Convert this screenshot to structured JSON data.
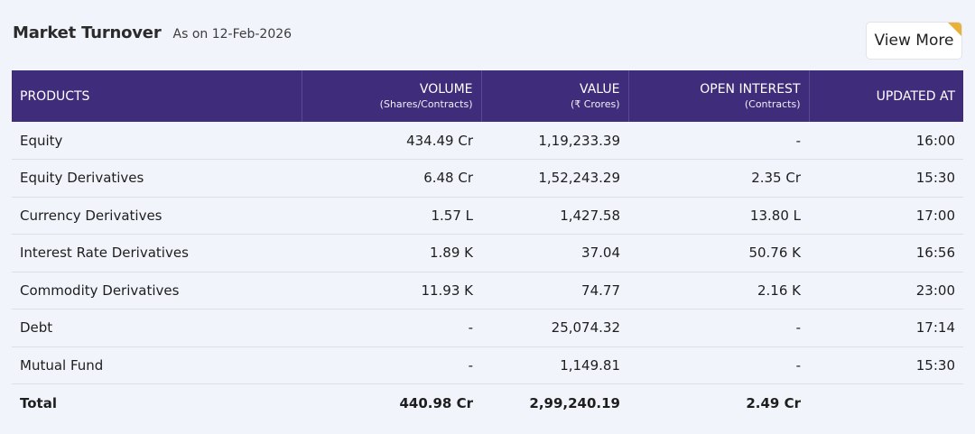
{
  "header": {
    "title": "Market Turnover",
    "as_of": "As on 12-Feb-2026",
    "view_more_label": "View More"
  },
  "table": {
    "columns": [
      {
        "main": "PRODUCTS",
        "sub": ""
      },
      {
        "main": "VOLUME",
        "sub": "(Shares/Contracts)"
      },
      {
        "main": "VALUE",
        "sub": "(₹ Crores)"
      },
      {
        "main": "OPEN INTEREST",
        "sub": "(Contracts)"
      },
      {
        "main": "UPDATED AT",
        "sub": ""
      }
    ],
    "rows": [
      [
        "Equity",
        "434.49 Cr",
        "1,19,233.39",
        "-",
        "16:00"
      ],
      [
        "Equity Derivatives",
        "6.48 Cr",
        "1,52,243.29",
        "2.35 Cr",
        "15:30"
      ],
      [
        "Currency Derivatives",
        "1.57 L",
        "1,427.58",
        "13.80 L",
        "17:00"
      ],
      [
        "Interest Rate Derivatives",
        "1.89 K",
        "37.04",
        "50.76 K",
        "16:56"
      ],
      [
        "Commodity Derivatives",
        "11.93 K",
        "74.77",
        "2.16 K",
        "23:00"
      ],
      [
        "Debt",
        "-",
        "25,074.32",
        "-",
        "17:14"
      ],
      [
        "Mutual Fund",
        "-",
        "1,149.81",
        "-",
        "15:30"
      ]
    ],
    "total": [
      "Total",
      "440.98 Cr",
      "2,99,240.19",
      "2.49 Cr",
      ""
    ]
  },
  "colors": {
    "header_bg": "#3f2d7b",
    "page_bg": "#f1f4fb",
    "accent_flag": "#e8b23a"
  }
}
